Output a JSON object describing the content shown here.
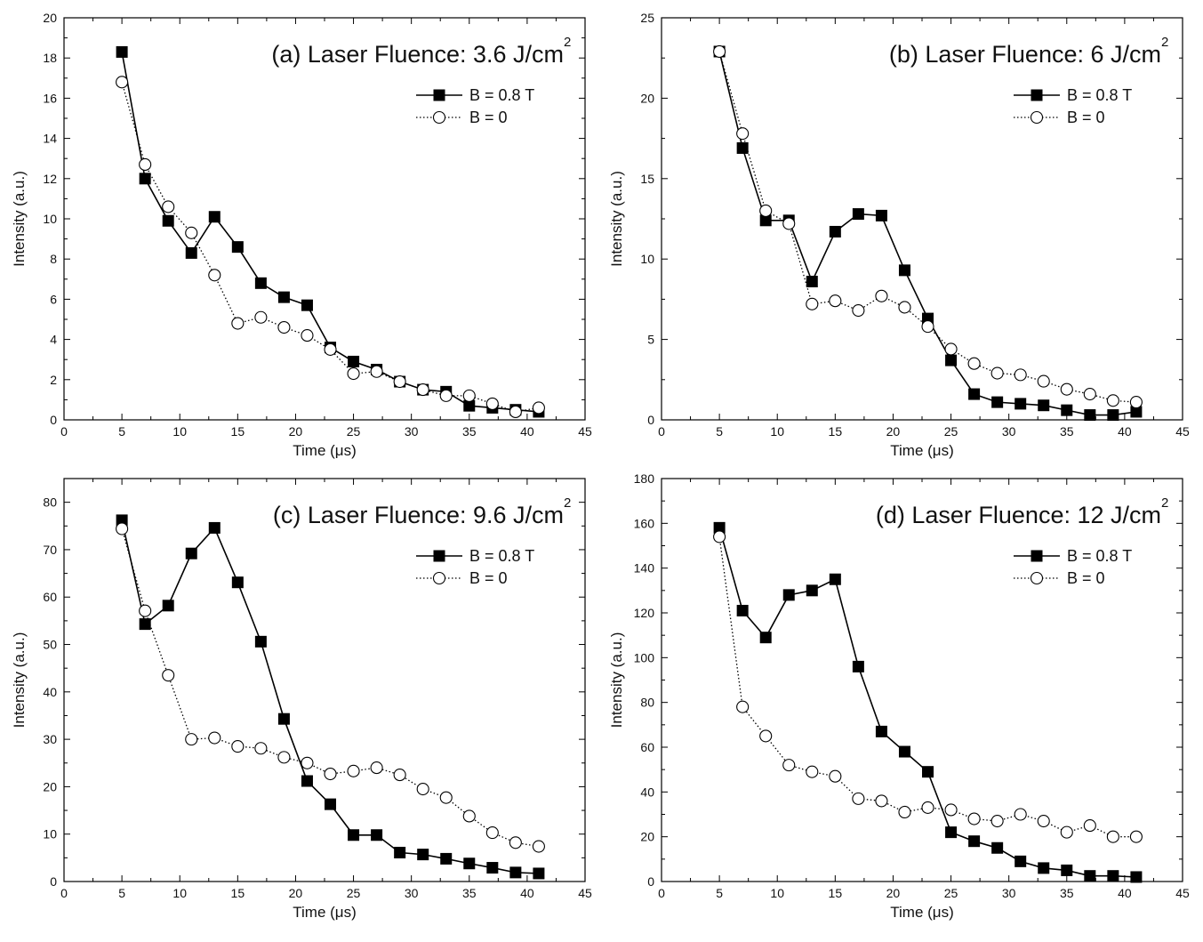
{
  "chart_data": [
    {
      "type": "line",
      "title": "(a) Laser Fluence: 3.6 J/cm",
      "title_sup": "2",
      "xlabel": "Time (μs)",
      "ylabel": "Intensity (a.u.)",
      "xlim": [
        0,
        45
      ],
      "ylim": [
        0,
        20
      ],
      "xticks": [
        0,
        5,
        10,
        15,
        20,
        25,
        30,
        35,
        40,
        45
      ],
      "yticks": [
        0,
        2,
        4,
        6,
        8,
        10,
        12,
        14,
        16,
        18,
        20
      ],
      "legend_position": "top-right",
      "series": [
        {
          "name": "B = 0.8 T",
          "marker": "filled-square",
          "line": "solid",
          "x": [
            5,
            7,
            9,
            11,
            13,
            15,
            17,
            19,
            21,
            23,
            25,
            27,
            29,
            31,
            33,
            35,
            37,
            39,
            41
          ],
          "y": [
            18.3,
            12.0,
            9.9,
            8.3,
            10.1,
            8.6,
            6.8,
            6.1,
            5.7,
            3.6,
            2.9,
            2.5,
            1.9,
            1.5,
            1.4,
            0.7,
            0.6,
            0.5,
            0.4
          ]
        },
        {
          "name": "B = 0",
          "marker": "open-circle",
          "line": "dotted",
          "x": [
            5,
            7,
            9,
            11,
            13,
            15,
            17,
            19,
            21,
            23,
            25,
            27,
            29,
            31,
            33,
            35,
            37,
            39,
            41
          ],
          "y": [
            16.8,
            12.7,
            10.6,
            9.3,
            7.2,
            4.8,
            5.1,
            4.6,
            4.2,
            3.5,
            2.3,
            2.4,
            1.9,
            1.5,
            1.2,
            1.2,
            0.8,
            0.4,
            0.6
          ]
        }
      ]
    },
    {
      "type": "line",
      "title": "(b) Laser Fluence: 6 J/cm",
      "title_sup": "2",
      "xlabel": "Time (μs)",
      "ylabel": "Intensity (a.u.)",
      "xlim": [
        0,
        45
      ],
      "ylim": [
        0,
        25
      ],
      "xticks": [
        0,
        5,
        10,
        15,
        20,
        25,
        30,
        35,
        40,
        45
      ],
      "yticks": [
        0,
        5,
        10,
        15,
        20,
        25
      ],
      "legend_position": "top-right",
      "series": [
        {
          "name": "B = 0.8 T",
          "marker": "filled-square",
          "line": "solid",
          "x": [
            5,
            7,
            9,
            11,
            13,
            15,
            17,
            19,
            21,
            23,
            25,
            27,
            29,
            31,
            33,
            35,
            37,
            39,
            41
          ],
          "y": [
            22.9,
            16.9,
            12.4,
            12.4,
            8.6,
            11.7,
            12.8,
            12.7,
            9.3,
            6.3,
            3.7,
            1.6,
            1.1,
            1.0,
            0.9,
            0.6,
            0.3,
            0.3,
            0.5
          ]
        },
        {
          "name": "B = 0",
          "marker": "open-circle",
          "line": "dotted",
          "x": [
            5,
            7,
            9,
            11,
            13,
            15,
            17,
            19,
            21,
            23,
            25,
            27,
            29,
            31,
            33,
            35,
            37,
            39,
            41
          ],
          "y": [
            22.9,
            17.8,
            13.0,
            12.2,
            7.2,
            7.4,
            6.8,
            7.7,
            7.0,
            5.8,
            4.4,
            3.5,
            2.9,
            2.8,
            2.4,
            1.9,
            1.6,
            1.2,
            1.1
          ]
        }
      ]
    },
    {
      "type": "line",
      "title": "(c) Laser Fluence: 9.6 J/cm",
      "title_sup": "2",
      "xlabel": "Time (μs)",
      "ylabel": "Intensity (a.u.)",
      "xlim": [
        0,
        45
      ],
      "ylim": [
        0,
        85
      ],
      "xticks": [
        0,
        5,
        10,
        15,
        20,
        25,
        30,
        35,
        40,
        45
      ],
      "yticks": [
        0,
        10,
        20,
        30,
        40,
        50,
        60,
        70,
        80
      ],
      "legend_position": "top-right",
      "series": [
        {
          "name": "B = 0.8 T",
          "marker": "filled-square",
          "line": "solid",
          "x": [
            5,
            7,
            9,
            11,
            13,
            15,
            17,
            19,
            21,
            23,
            25,
            27,
            29,
            31,
            33,
            35,
            37,
            39,
            41
          ],
          "y": [
            76.2,
            54.3,
            58.2,
            69.2,
            74.6,
            63.1,
            50.6,
            34.3,
            21.2,
            16.3,
            9.8,
            9.8,
            6.1,
            5.7,
            4.8,
            3.8,
            2.9,
            1.9,
            1.7
          ]
        },
        {
          "name": "B = 0",
          "marker": "open-circle",
          "line": "dotted",
          "x": [
            5,
            7,
            9,
            11,
            13,
            15,
            17,
            19,
            21,
            23,
            25,
            27,
            29,
            31,
            33,
            35,
            37,
            39,
            41
          ],
          "y": [
            74.4,
            57.1,
            43.5,
            30.0,
            30.3,
            28.5,
            28.1,
            26.2,
            25.0,
            22.7,
            23.3,
            24.0,
            22.5,
            19.5,
            17.7,
            13.8,
            10.3,
            8.2,
            7.4
          ]
        }
      ]
    },
    {
      "type": "line",
      "title": "(d) Laser Fluence: 12 J/cm",
      "title_sup": "2",
      "xlabel": "Time (μs)",
      "ylabel": "Intensity (a.u.)",
      "xlim": [
        0,
        45
      ],
      "ylim": [
        0,
        180
      ],
      "xticks": [
        0,
        5,
        10,
        15,
        20,
        25,
        30,
        35,
        40,
        45
      ],
      "yticks": [
        0,
        20,
        40,
        60,
        80,
        100,
        120,
        140,
        160,
        180
      ],
      "legend_position": "top-right",
      "series": [
        {
          "name": "B = 0.8 T",
          "marker": "filled-square",
          "line": "solid",
          "x": [
            5,
            7,
            9,
            11,
            13,
            15,
            17,
            19,
            21,
            23,
            25,
            27,
            29,
            31,
            33,
            35,
            37,
            39,
            41
          ],
          "y": [
            158,
            121,
            109,
            128,
            130,
            135,
            96,
            67,
            58,
            49,
            22,
            18,
            15,
            9,
            6,
            5,
            2.5,
            2.5,
            2
          ]
        },
        {
          "name": "B = 0",
          "marker": "open-circle",
          "line": "dotted",
          "x": [
            5,
            7,
            9,
            11,
            13,
            15,
            17,
            19,
            21,
            23,
            25,
            27,
            29,
            31,
            33,
            35,
            37,
            39,
            41
          ],
          "y": [
            154,
            78,
            65,
            52,
            49,
            47,
            37,
            36,
            31,
            33,
            32,
            28,
            27,
            30,
            27,
            22,
            25,
            20,
            20
          ]
        }
      ]
    }
  ]
}
